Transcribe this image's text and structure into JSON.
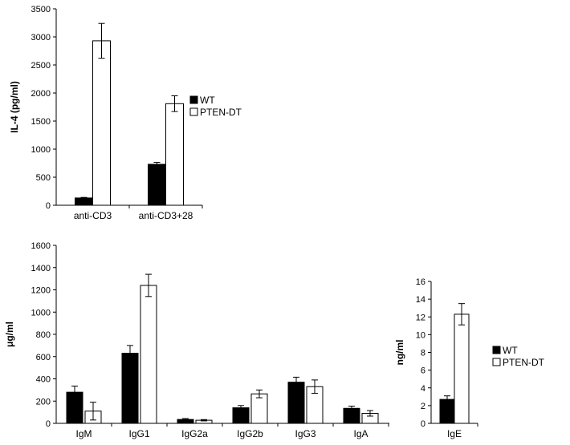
{
  "chart_data": [
    {
      "type": "bar",
      "ylabel": "IL-4 (pg/ml)",
      "xlabel": "",
      "ylim": [
        0,
        3500
      ],
      "yticks": [
        0,
        500,
        1000,
        1500,
        2000,
        2500,
        3000,
        3500
      ],
      "categories": [
        "anti-CD3",
        "anti-CD3+28"
      ],
      "series": [
        {
          "name": "WT",
          "color": "#000000",
          "values": [
            130,
            730
          ],
          "errors": [
            10,
            35
          ]
        },
        {
          "name": "PTEN-DT",
          "color": "#ffffff",
          "values": [
            2930,
            1810
          ],
          "errors": [
            310,
            140
          ]
        }
      ],
      "legend": [
        "WT",
        "PTEN-DT"
      ],
      "legend_position": "right",
      "grid": false
    },
    {
      "type": "bar",
      "ylabel": "μg/ml",
      "xlabel": "",
      "ylim": [
        0,
        1600
      ],
      "yticks": [
        0,
        200,
        400,
        600,
        800,
        1000,
        1200,
        1400,
        1600
      ],
      "categories": [
        "IgM",
        "IgG1",
        "IgG2a",
        "IgG2b",
        "IgG3",
        "IgA"
      ],
      "series": [
        {
          "name": "WT",
          "color": "#000000",
          "values": [
            280,
            630,
            35,
            140,
            370,
            135
          ],
          "errors": [
            55,
            70,
            8,
            20,
            45,
            20
          ]
        },
        {
          "name": "PTEN-DT",
          "color": "#ffffff",
          "values": [
            110,
            1240,
            28,
            265,
            330,
            90
          ],
          "errors": [
            80,
            100,
            6,
            35,
            60,
            25
          ]
        }
      ],
      "grid": false
    },
    {
      "type": "bar",
      "ylabel": "ng/ml",
      "xlabel": "",
      "ylim": [
        0,
        16
      ],
      "yticks": [
        0,
        2,
        4,
        6,
        8,
        10,
        12,
        14,
        16
      ],
      "categories": [
        "IgE"
      ],
      "series": [
        {
          "name": "WT",
          "color": "#000000",
          "values": [
            2.7
          ],
          "errors": [
            0.4
          ]
        },
        {
          "name": "PTEN-DT",
          "color": "#ffffff",
          "values": [
            12.3
          ],
          "errors": [
            1.2
          ]
        }
      ],
      "legend": [
        "WT",
        "PTEN-DT"
      ],
      "legend_position": "right",
      "grid": false
    }
  ]
}
